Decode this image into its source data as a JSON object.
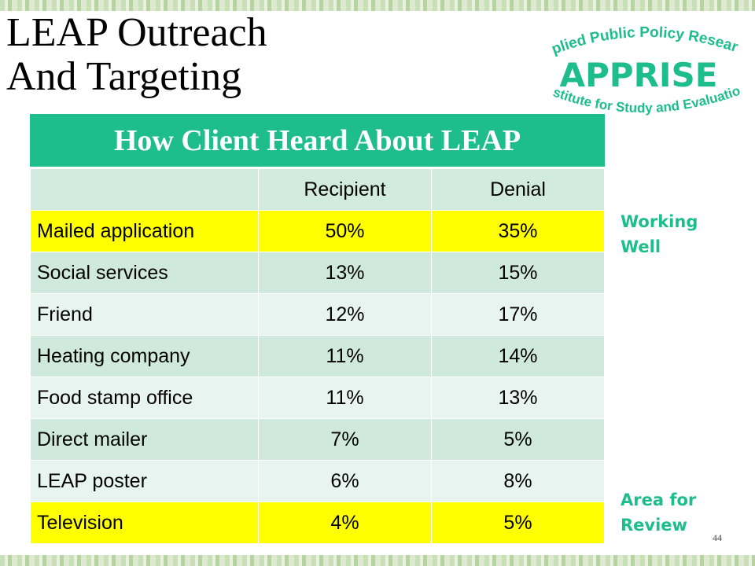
{
  "slide": {
    "title_line1": "LEAP Outreach",
    "title_line2": "And Targeting",
    "page_number": "44"
  },
  "logo": {
    "top_arc": "Applied Public Policy Research",
    "name": "APPRISE",
    "bottom_arc": "Institute for Study and Evaluation",
    "color": "#1ebd8c"
  },
  "table": {
    "title": "How Client Heard About LEAP",
    "columns": [
      "",
      "Recipient",
      "Denial"
    ],
    "rows": [
      {
        "label": "Mailed application",
        "recipient": "50%",
        "denial": "35%",
        "highlight": true
      },
      {
        "label": "Social services",
        "recipient": "13%",
        "denial": "15%"
      },
      {
        "label": "Friend",
        "recipient": "12%",
        "denial": "17%"
      },
      {
        "label": "Heating company",
        "recipient": "11%",
        "denial": "14%"
      },
      {
        "label": "Food stamp office",
        "recipient": "11%",
        "denial": "13%"
      },
      {
        "label": "Direct mailer",
        "recipient": "7%",
        "denial": "5%"
      },
      {
        "label": "LEAP poster",
        "recipient": "6%",
        "denial": "8%"
      },
      {
        "label": "Television",
        "recipient": "4%",
        "denial": "5%",
        "highlight": true
      }
    ]
  },
  "notes": {
    "working_well": [
      "Working",
      "Well"
    ],
    "area_for_review": [
      "Area for",
      "Review"
    ]
  },
  "colors": {
    "accent": "#1ebd8c",
    "highlight": "#ffff00",
    "row_alt": "#cfe9df",
    "row_plain": "#e8f4ef"
  }
}
